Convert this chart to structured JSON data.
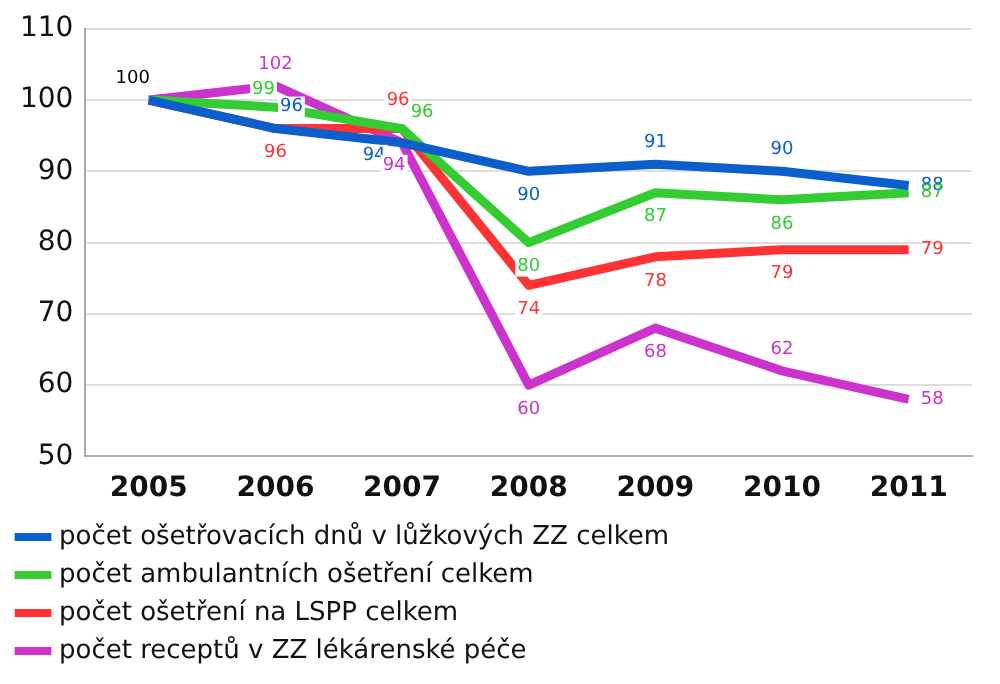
{
  "chart_data": {
    "type": "line",
    "categories": [
      "2005",
      "2006",
      "2007",
      "2008",
      "2009",
      "2010",
      "2011"
    ],
    "series": [
      {
        "name": "počet ošetřovacích dnů v lůžkových ZZ celkem",
        "color": "#0a5fcc",
        "values": [
          100,
          96,
          94,
          90,
          91,
          90,
          88
        ],
        "value_labels": [
          null,
          "96",
          "94",
          "90",
          "91",
          "90",
          "88"
        ]
      },
      {
        "name": "počet ambulantních ošetření celkem",
        "color": "#33cc33",
        "values": [
          100,
          99,
          96,
          80,
          87,
          86,
          87
        ],
        "value_labels": [
          null,
          "99",
          "96",
          "80",
          "87",
          "86",
          "87"
        ]
      },
      {
        "name": "počet ošetření na LSPP celkem",
        "color": "#ff3333",
        "values": [
          100,
          96,
          96,
          74,
          78,
          79,
          79
        ],
        "value_labels": [
          null,
          "96",
          "96",
          "74",
          "78",
          "79",
          "79"
        ]
      },
      {
        "name": "počet receptů v ZZ lékárenské péče",
        "color": "#cc33cc",
        "values": [
          100,
          102,
          94,
          60,
          68,
          62,
          58
        ],
        "value_labels": [
          null,
          "102",
          "94",
          "60",
          "68",
          "62",
          "58"
        ]
      }
    ],
    "annotations": [
      {
        "text": "100",
        "x": "2005",
        "y": 100
      }
    ],
    "ylim": [
      50,
      110
    ],
    "yticks": [
      50,
      60,
      70,
      80,
      90,
      100,
      110
    ],
    "grid": "y",
    "legend": "bottom",
    "marker": "none",
    "line_style": "solid"
  }
}
